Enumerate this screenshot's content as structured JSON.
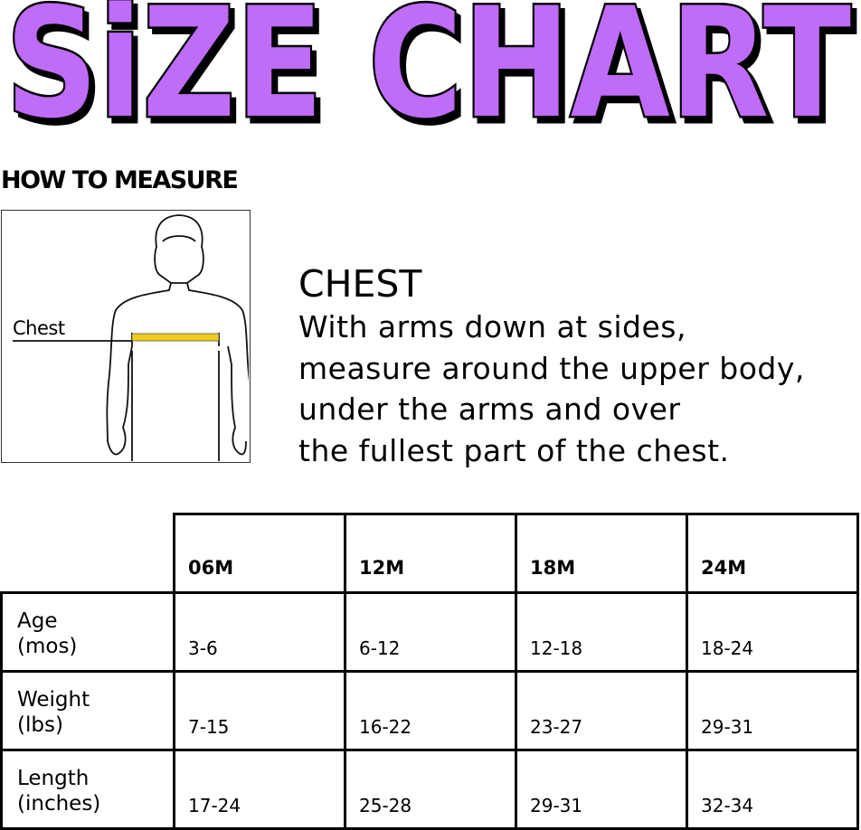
{
  "title": "SiZE CHART",
  "title_color": "#BF6CF8",
  "how_to_measure": "HOW TO MEASURE",
  "figure": {
    "label": "Chest",
    "tape_color": "#F2CB1D"
  },
  "measure": {
    "heading": "CHEST",
    "lines": [
      "With arms down at sides,",
      "measure around the upper body,",
      "under the arms and over",
      "the fullest part of the chest."
    ]
  },
  "table": {
    "columns": [
      "06M",
      "12M",
      "18M",
      "24M"
    ],
    "rows": [
      {
        "label1": "Age",
        "label2": "(mos)",
        "values": [
          "3-6",
          "6-12",
          "12-18",
          "18-24"
        ]
      },
      {
        "label1": "Weight",
        "label2": "(lbs)",
        "values": [
          "7-15",
          "16-22",
          "23-27",
          "29-31"
        ]
      },
      {
        "label1": "Length",
        "label2": "(inches)",
        "values": [
          "17-24",
          "25-28",
          "29-31",
          "32-34"
        ]
      }
    ]
  }
}
